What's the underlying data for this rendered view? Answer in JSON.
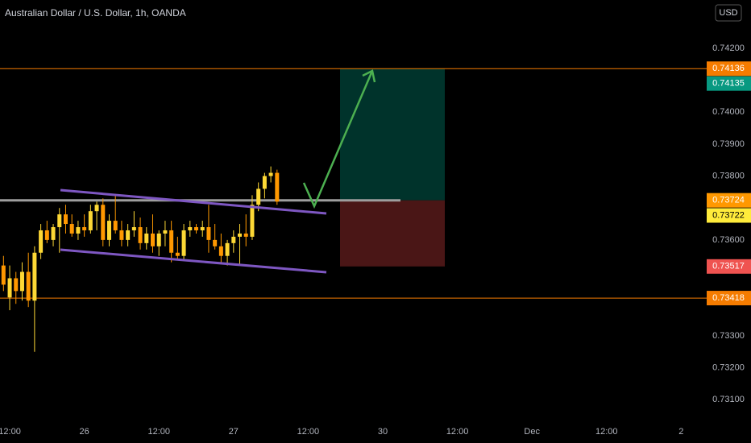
{
  "chart_data": {
    "type": "candlestick",
    "title": "Australian Dollar / U.S. Dollar, 1h, OANDA",
    "currency": "USD",
    "up_color": "#fdd835",
    "down_color": "#ff9800",
    "x": [
      -1,
      0,
      1,
      2,
      3,
      4,
      5,
      6,
      7,
      8,
      9,
      10,
      11,
      12,
      13,
      14,
      15,
      16,
      17,
      18,
      19,
      20,
      21,
      22,
      23,
      24,
      25,
      26,
      27,
      28,
      29,
      30,
      31,
      32,
      33,
      34,
      35,
      36,
      37,
      38,
      39,
      40,
      41,
      42,
      43
    ],
    "open": [
      0.7352,
      0.7342,
      0.7348,
      0.7344,
      0.735,
      0.7341,
      0.7356,
      0.7363,
      0.736,
      0.7364,
      0.7368,
      0.7365,
      0.7362,
      0.7364,
      0.7363,
      0.7369,
      0.7371,
      0.736,
      0.7366,
      0.7363,
      0.736,
      0.7363,
      0.7364,
      0.7359,
      0.7362,
      0.7358,
      0.7362,
      0.7363,
      0.7356,
      0.7355,
      0.7363,
      0.7364,
      0.7363,
      0.7364,
      0.736,
      0.7358,
      0.7355,
      0.7359,
      0.7361,
      0.7362,
      0.7361,
      0.7371,
      0.7376,
      0.738,
      0.7381
    ],
    "high": [
      0.7355,
      0.7352,
      0.735,
      0.7353,
      0.7356,
      0.7358,
      0.7365,
      0.7366,
      0.7365,
      0.737,
      0.7371,
      0.7368,
      0.7366,
      0.7368,
      0.7371,
      0.7372,
      0.7373,
      0.7368,
      0.7374,
      0.7366,
      0.7365,
      0.7369,
      0.7367,
      0.7364,
      0.7368,
      0.7363,
      0.7366,
      0.7366,
      0.7361,
      0.7365,
      0.7366,
      0.7365,
      0.7366,
      0.7371,
      0.7365,
      0.7362,
      0.736,
      0.7363,
      0.7365,
      0.7368,
      0.7374,
      0.7378,
      0.7381,
      0.7383,
      0.7382
    ],
    "low": [
      0.7344,
      0.7338,
      0.734,
      0.7341,
      0.7339,
      0.7325,
      0.7354,
      0.7359,
      0.7358,
      0.7356,
      0.7362,
      0.7361,
      0.736,
      0.7361,
      0.7362,
      0.7363,
      0.7358,
      0.7358,
      0.7362,
      0.7358,
      0.7358,
      0.7361,
      0.7357,
      0.7357,
      0.7356,
      0.7355,
      0.7358,
      0.7353,
      0.7354,
      0.7354,
      0.7361,
      0.7362,
      0.7361,
      0.7356,
      0.7357,
      0.7353,
      0.7352,
      0.7356,
      0.7352,
      0.7358,
      0.736,
      0.7369,
      0.7373,
      0.7378,
      0.7371
    ],
    "close": [
      0.7346,
      0.7348,
      0.7344,
      0.735,
      0.7341,
      0.7356,
      0.7363,
      0.736,
      0.7364,
      0.7368,
      0.7365,
      0.7362,
      0.7364,
      0.7363,
      0.7369,
      0.7371,
      0.736,
      0.7366,
      0.7363,
      0.736,
      0.7363,
      0.7364,
      0.7359,
      0.7362,
      0.7358,
      0.7362,
      0.7363,
      0.7356,
      0.7355,
      0.7363,
      0.7364,
      0.7363,
      0.7364,
      0.736,
      0.7358,
      0.7355,
      0.7359,
      0.7361,
      0.7362,
      0.7361,
      0.7371,
      0.7376,
      0.738,
      0.7381,
      0.7372
    ],
    "xlim": [
      -1.56,
      112.1
    ],
    "xticks": [
      {
        "value": 0,
        "label": "12:00"
      },
      {
        "value": 12,
        "label": "26"
      },
      {
        "value": 24,
        "label": "12:00"
      },
      {
        "value": 36,
        "label": "27"
      },
      {
        "value": 48,
        "label": "12:00"
      },
      {
        "value": 60,
        "label": "30"
      },
      {
        "value": 72,
        "label": "12:00"
      },
      {
        "value": 84,
        "label": "Dec"
      },
      {
        "value": 96,
        "label": "12:00"
      },
      {
        "value": 108,
        "label": "2"
      }
    ],
    "ylim": [
      0.7304,
      0.74351
    ],
    "yticks": [
      {
        "value": 0.742,
        "label": "0.74200"
      },
      {
        "value": 0.74,
        "label": "0.74000"
      },
      {
        "value": 0.739,
        "label": "0.73900"
      },
      {
        "value": 0.738,
        "label": "0.73800"
      },
      {
        "value": 0.736,
        "label": "0.73600"
      },
      {
        "value": 0.733,
        "label": "0.73300"
      },
      {
        "value": 0.732,
        "label": "0.73200"
      },
      {
        "value": 0.731,
        "label": "0.73100"
      }
    ],
    "price_labels": [
      {
        "value": 0.74136,
        "label": "0.74136",
        "color": "#f57c00"
      },
      {
        "value": 0.74135,
        "label": "0.74135",
        "color": "#089981"
      },
      {
        "value": 0.73724,
        "label": "0.73724",
        "color": "#ff9800"
      },
      {
        "value": 0.73722,
        "label": "0.73722",
        "color": "#ffeb3b"
      },
      {
        "value": 0.73517,
        "label": "0.73517",
        "color": "#ef5350"
      },
      {
        "value": 0.73418,
        "label": "0.73418",
        "color": "#f57c00"
      }
    ]
  }
}
